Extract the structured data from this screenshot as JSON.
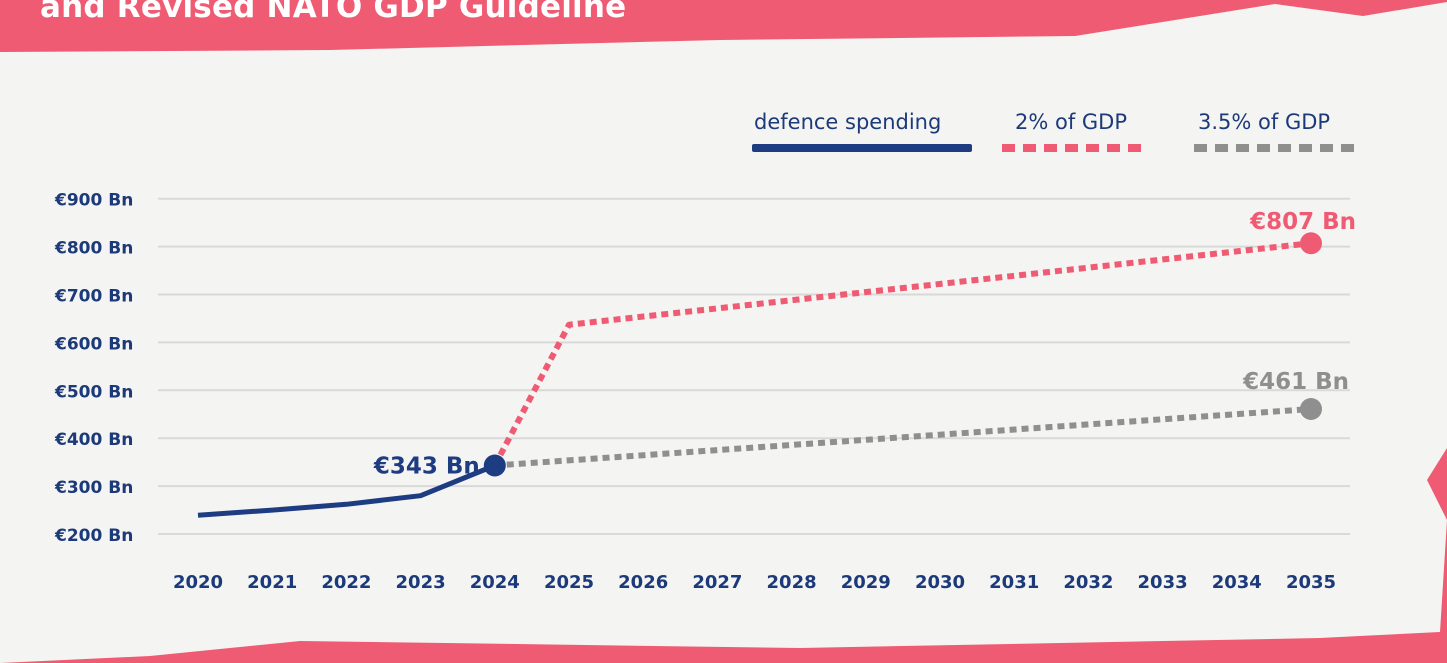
{
  "title": "and Revised NATO GDP Guideline",
  "legend": {
    "spending": "defence spending",
    "two_pct": "2% of GDP",
    "three_five_pct": "3.5% of GDP"
  },
  "colors": {
    "background": "#ef5b72",
    "paper": "#f4f4f2",
    "spending": "#1e3c82",
    "two_pct": "#ef5b72",
    "three_five_pct": "#8f8f8f",
    "axis_text": "#1c3a7a"
  },
  "chart_data": {
    "type": "line",
    "title": "and Revised NATO GDP Guideline",
    "xlabel": "",
    "ylabel": "",
    "x": [
      2020,
      2021,
      2022,
      2023,
      2024,
      2025,
      2026,
      2027,
      2028,
      2029,
      2030,
      2031,
      2032,
      2033,
      2034,
      2035
    ],
    "x_tick_labels": [
      "2020",
      "2021",
      "2022",
      "2023",
      "2024",
      "2025",
      "2026",
      "2027",
      "2028",
      "2029",
      "2030",
      "2031",
      "2032",
      "2033",
      "2034",
      "2035"
    ],
    "y_ticks": [
      200,
      300,
      400,
      500,
      600,
      700,
      800,
      900
    ],
    "y_tick_labels": [
      "€200 Bn",
      "€300 Bn",
      "€400 Bn",
      "€500 Bn",
      "€600 Bn",
      "€700 Bn",
      "€800 Bn",
      "€900 Bn"
    ],
    "ylim": [
      200,
      900
    ],
    "grid": true,
    "legend_position": "top-right",
    "series": [
      {
        "name": "defence spending",
        "style": "solid",
        "x": [
          2020,
          2021,
          2022,
          2023,
          2024
        ],
        "values": [
          239,
          250,
          262,
          280,
          343
        ],
        "end_label": "€343 Bn"
      },
      {
        "name": "2% of GDP",
        "style": "dotted",
        "x": [
          2024,
          2025,
          2035
        ],
        "values": [
          343,
          637,
          807
        ],
        "end_label": "€807 Bn"
      },
      {
        "name": "3.5% of GDP",
        "style": "dotted",
        "x": [
          2024,
          2035
        ],
        "values": [
          343,
          461
        ],
        "end_label": "€461 Bn"
      }
    ]
  }
}
